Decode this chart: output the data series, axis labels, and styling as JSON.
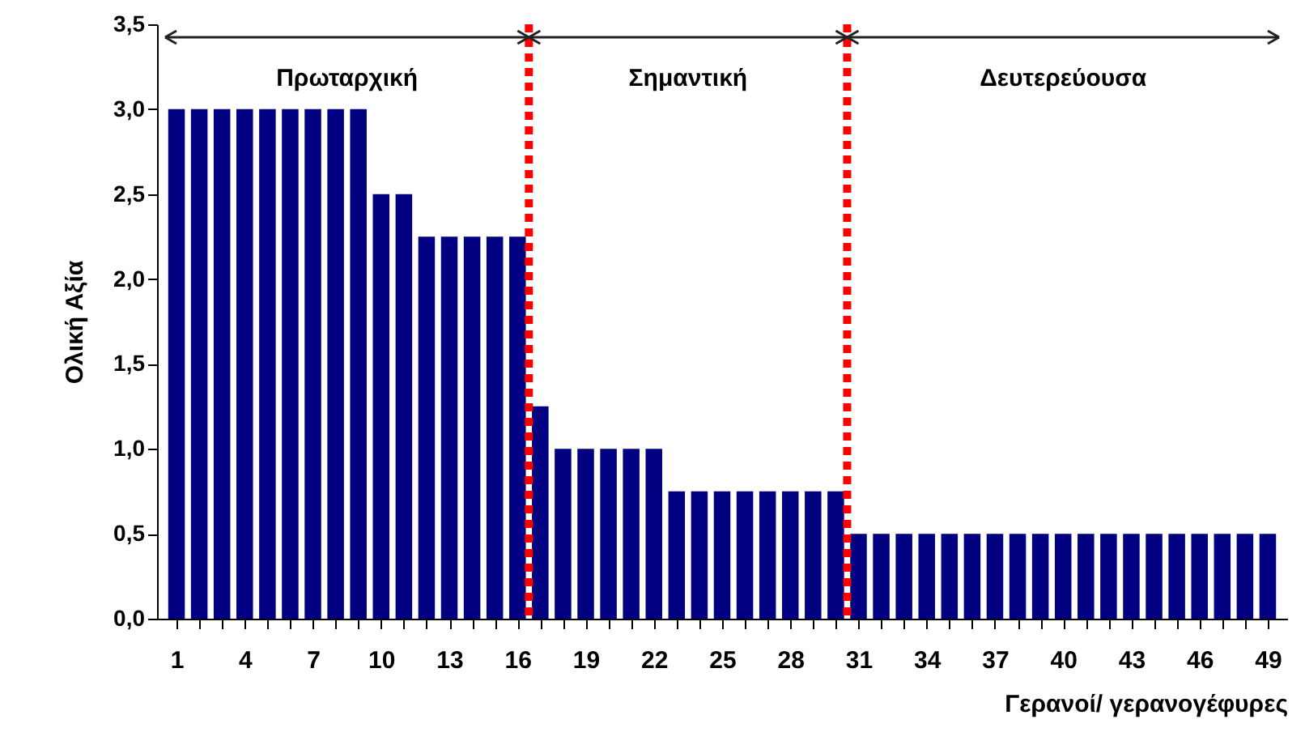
{
  "chart_data": {
    "type": "bar",
    "xlabel": "Γερανοί/ γερανογέφυρες",
    "ylabel": "Ολική Αξία",
    "x": [
      1,
      2,
      3,
      4,
      5,
      6,
      7,
      8,
      9,
      10,
      11,
      12,
      13,
      14,
      15,
      16,
      17,
      18,
      19,
      20,
      21,
      22,
      23,
      24,
      25,
      26,
      27,
      28,
      29,
      30,
      31,
      32,
      33,
      34,
      35,
      36,
      37,
      38,
      39,
      40,
      41,
      42,
      43,
      44,
      45,
      46,
      47,
      48,
      49
    ],
    "values": [
      3.0,
      3.0,
      3.0,
      3.0,
      3.0,
      3.0,
      3.0,
      3.0,
      3.0,
      2.5,
      2.5,
      2.25,
      2.25,
      2.25,
      2.25,
      2.25,
      1.25,
      1.0,
      1.0,
      1.0,
      1.0,
      1.0,
      0.75,
      0.75,
      0.75,
      0.75,
      0.75,
      0.75,
      0.75,
      0.75,
      0.5,
      0.5,
      0.5,
      0.5,
      0.5,
      0.5,
      0.5,
      0.5,
      0.5,
      0.5,
      0.5,
      0.5,
      0.5,
      0.5,
      0.5,
      0.5,
      0.5,
      0.5,
      0.5
    ],
    "color": "#000080",
    "xlim": [
      0.5,
      49.5
    ],
    "xticks": [
      1,
      {
        "value": 2,
        "label": null
      },
      {
        "value": 3,
        "label": null
      },
      4,
      {
        "value": 5,
        "label": null
      },
      {
        "value": 6,
        "label": null
      },
      7,
      {
        "value": 8,
        "label": null
      },
      {
        "value": 9,
        "label": null
      },
      10,
      {
        "value": 11,
        "label": null
      },
      {
        "value": 12,
        "label": null
      },
      13,
      {
        "value": 14,
        "label": null
      },
      {
        "value": 15,
        "label": null
      },
      16,
      {
        "value": 17,
        "label": null
      },
      {
        "value": 18,
        "label": null
      },
      19,
      {
        "value": 20,
        "label": null
      },
      {
        "value": 21,
        "label": null
      },
      22,
      {
        "value": 23,
        "label": null
      },
      {
        "value": 24,
        "label": null
      },
      25,
      {
        "value": 26,
        "label": null
      },
      {
        "value": 27,
        "label": null
      },
      28,
      {
        "value": 29,
        "label": null
      },
      {
        "value": 30,
        "label": null
      },
      31,
      {
        "value": 32,
        "label": null
      },
      {
        "value": 33,
        "label": null
      },
      34,
      {
        "value": 35,
        "label": null
      },
      {
        "value": 36,
        "label": null
      },
      37,
      {
        "value": 38,
        "label": null
      },
      {
        "value": 39,
        "label": null
      },
      40,
      {
        "value": 41,
        "label": null
      },
      {
        "value": 42,
        "label": null
      },
      43,
      {
        "value": 44,
        "label": null
      },
      {
        "value": 45,
        "label": null
      },
      46,
      {
        "value": 47,
        "label": null
      },
      {
        "value": 48,
        "label": null
      },
      49
    ],
    "ylim": [
      0,
      3.5
    ],
    "yticks": [
      {
        "value": 0,
        "label": "0,0"
      },
      {
        "value": 0.5,
        "label": "0,5"
      },
      {
        "value": 1,
        "label": "1,0"
      },
      {
        "value": 1.5,
        "label": "1,5"
      },
      {
        "value": 2,
        "label": "2,0"
      },
      {
        "value": 2.5,
        "label": "2,5"
      },
      {
        "value": 3,
        "label": "3,0"
      },
      {
        "value": 3.5,
        "label": "3,5"
      }
    ],
    "grid": false,
    "ref_lines": [
      {
        "axis": "x",
        "value": 16.5,
        "color": "#ff0000",
        "line_style": "dotted"
      },
      {
        "axis": "x",
        "value": 30.5,
        "color": "#ff0000",
        "line_style": "dotted"
      }
    ],
    "annotations": [
      "Πρωταρχική",
      "Σημαντική",
      "Δευτερεύουσα"
    ]
  }
}
